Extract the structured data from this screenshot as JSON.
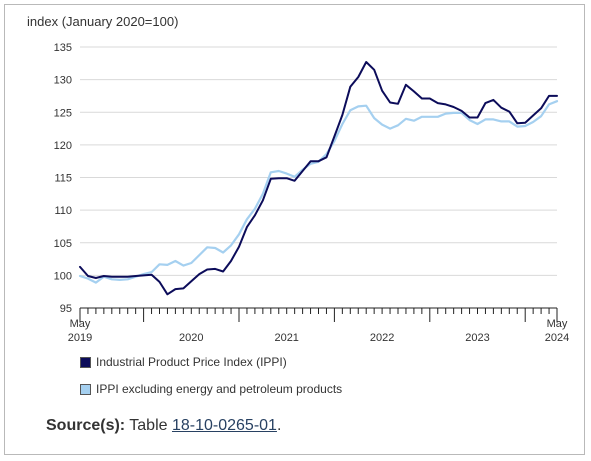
{
  "chart_data": {
    "type": "line",
    "ylabel": "index (January 2020=100)",
    "ylim": [
      95,
      135
    ],
    "yticks": [
      95,
      100,
      105,
      110,
      115,
      120,
      125,
      130,
      135
    ],
    "x_start": "2019-05",
    "x_end": "2024-05",
    "month_labels": [
      {
        "month": "May",
        "year": "2019",
        "date": "2019-05"
      },
      {
        "month": "May",
        "year": "2024",
        "date": "2024-05"
      }
    ],
    "year_labels": [
      {
        "label": "2020",
        "date": "2020-07"
      },
      {
        "label": "2021",
        "date": "2021-07"
      },
      {
        "label": "2022",
        "date": "2022-07"
      },
      {
        "label": "2023",
        "date": "2023-07"
      }
    ],
    "grid": "horizontal",
    "series": [
      {
        "name": "Industrial Product Price Index (IPPI)",
        "color": "#0c0c5a",
        "values": [
          101.3,
          99.9,
          99.6,
          99.9,
          99.8,
          99.8,
          99.8,
          99.9,
          100.0,
          100.1,
          99.0,
          97.1,
          97.9,
          98.0,
          99.1,
          100.2,
          100.9,
          101.0,
          100.6,
          102.2,
          104.4,
          107.4,
          109.2,
          111.5,
          114.8,
          114.9,
          114.9,
          114.5,
          116.0,
          117.5,
          117.5,
          118.1,
          121.3,
          124.6,
          128.9,
          130.4,
          132.7,
          131.5,
          128.3,
          126.5,
          126.3,
          129.2,
          128.2,
          127.1,
          127.1,
          126.4,
          126.2,
          125.8,
          125.2,
          124.2,
          124.2,
          126.4,
          126.9,
          125.7,
          125.1,
          123.3,
          123.4,
          124.5,
          125.6,
          127.5,
          127.5
        ]
      },
      {
        "name": "IPPI excluding energy and petroleum products",
        "color": "#a5d0f0",
        "values": [
          99.9,
          99.5,
          98.9,
          99.8,
          99.4,
          99.3,
          99.4,
          99.8,
          100.2,
          100.5,
          101.7,
          101.6,
          102.2,
          101.5,
          101.9,
          103.1,
          104.3,
          104.2,
          103.5,
          104.6,
          106.3,
          108.6,
          110.2,
          112.5,
          115.8,
          116.0,
          115.6,
          115.1,
          116.2,
          117.1,
          117.4,
          118.6,
          120.6,
          123.2,
          125.3,
          125.9,
          126.0,
          124.1,
          123.1,
          122.5,
          123.0,
          124.0,
          123.7,
          124.3,
          124.3,
          124.3,
          124.8,
          124.9,
          124.9,
          123.8,
          123.2,
          123.9,
          123.9,
          123.6,
          123.6,
          122.8,
          122.9,
          123.5,
          124.4,
          126.2,
          126.7
        ]
      }
    ]
  },
  "source": {
    "label": "Source(s):",
    "text": "Table",
    "link_text": "18-10-0265-01",
    "suffix": "."
  }
}
